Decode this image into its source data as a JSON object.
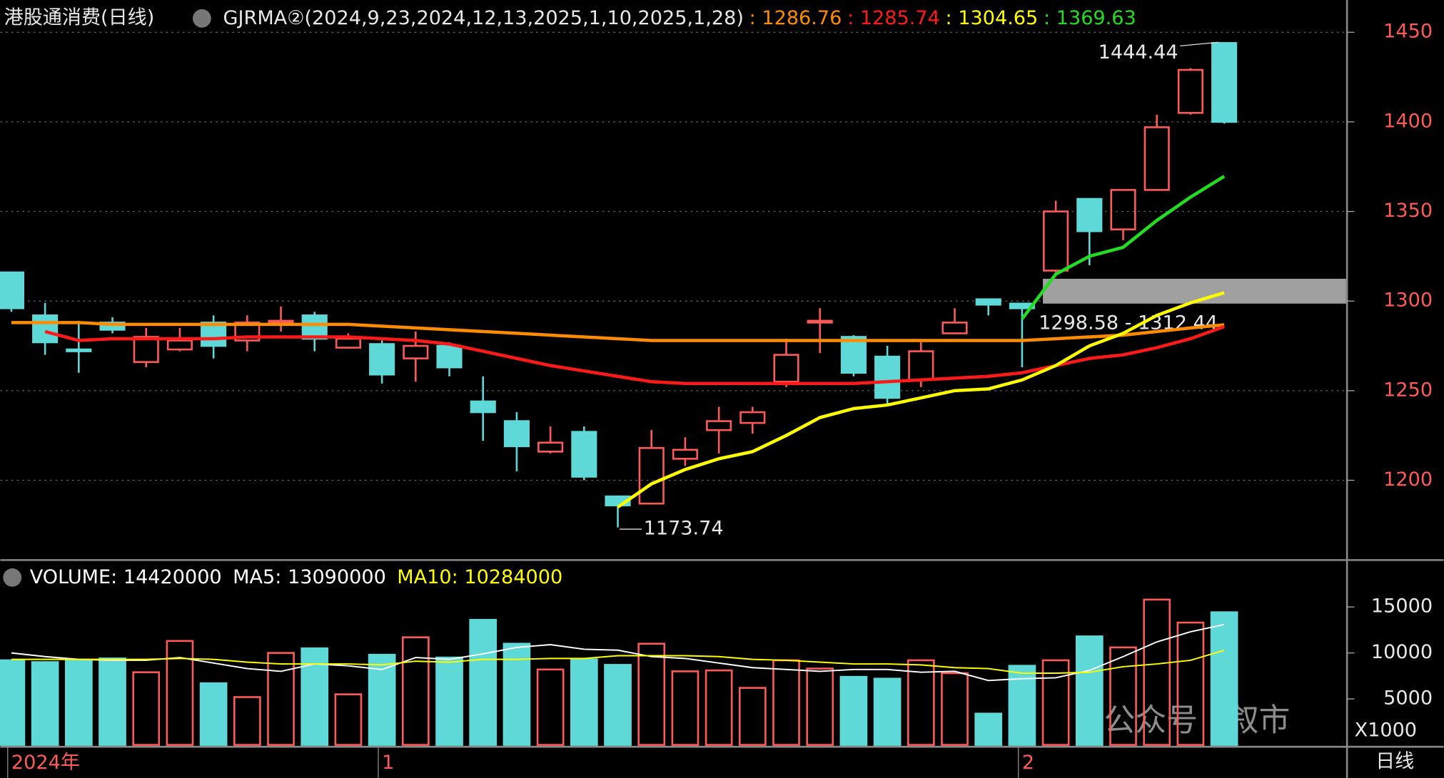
{
  "chart_data": [
    {
      "type": "candlestick",
      "title": "港股通消费(日线)",
      "indicator": "GJRMA②(2024,9,23,2024,12,13,2025,1,10,2025,1,28)",
      "up_color": "#ff5a5a",
      "down_color": "#5fd8d8",
      "open": [
        1316,
        1292,
        1273,
        1288,
        1266,
        1273,
        1288,
        1278,
        1288,
        1292,
        1274,
        1276,
        1268,
        1275,
        1244,
        1233,
        1216,
        1227,
        1191,
        1187,
        1212,
        1228,
        1232,
        1255,
        1288,
        1280,
        1269,
        1256,
        1282,
        1301,
        1298.58,
        1317,
        1357,
        1340,
        1362,
        1405,
        1444
      ],
      "high": [
        1316,
        1299,
        1289,
        1291,
        1285,
        1285,
        1292,
        1292,
        1297,
        1294,
        1282,
        1278,
        1283,
        1277,
        1258,
        1238,
        1230,
        1230,
        1191,
        1228,
        1224,
        1241,
        1241,
        1279,
        1296,
        1281,
        1275,
        1277,
        1296,
        1301,
        1298.6,
        1356,
        1357,
        1362,
        1404,
        1430,
        1444.44
      ],
      "low": [
        1294,
        1270,
        1260,
        1282,
        1263,
        1272,
        1268,
        1272,
        1283,
        1272,
        1274,
        1254,
        1255,
        1258,
        1222,
        1205,
        1215,
        1200,
        1173.74,
        1187,
        1208,
        1215,
        1226,
        1252,
        1271,
        1258,
        1242,
        1252,
        1282,
        1292,
        1263,
        1316,
        1320,
        1334,
        1362,
        1404,
        1399
      ],
      "close": [
        1296,
        1277,
        1272,
        1284,
        1280,
        1278,
        1275,
        1288,
        1289,
        1279,
        1279,
        1259,
        1275,
        1263,
        1238,
        1219,
        1221,
        1202,
        1186,
        1218,
        1217,
        1233,
        1238,
        1270,
        1289,
        1260,
        1246,
        1272,
        1288,
        1298,
        1296,
        1350,
        1339,
        1362,
        1397,
        1429,
        1400
      ],
      "ma_lines": [
        {
          "color": "#ff8c00",
          "readout": ": 1286.76",
          "values": [
            1288,
            1288,
            1288,
            1287,
            1287,
            1287,
            1287,
            1287,
            1287,
            1287,
            1287,
            1286,
            1285,
            1284,
            1283,
            1282,
            1281,
            1280,
            1279,
            1278,
            1278,
            1278,
            1278,
            1278,
            1278,
            1278,
            1278,
            1278,
            1278,
            1278,
            1278,
            1279,
            1280,
            1281,
            1283,
            1285,
            1286.76
          ]
        },
        {
          "color": "#ff1a1a",
          "readout": ": 1285.74",
          "values": [
            null,
            1283,
            1278,
            1279,
            1279,
            1279,
            1279,
            1280,
            1280,
            1280,
            1280,
            1279,
            1278,
            1276,
            1272,
            1268,
            1264,
            1261,
            1258,
            1255,
            1254,
            1254,
            1254,
            1254,
            1254,
            1254,
            1255,
            1256,
            1257,
            1258,
            1260,
            1264,
            1268,
            1270,
            1274,
            1279,
            1285.74
          ]
        },
        {
          "color": "#ffff00",
          "readout": ": 1304.65",
          "values": [
            null,
            null,
            null,
            null,
            null,
            null,
            null,
            null,
            null,
            null,
            null,
            null,
            null,
            null,
            null,
            null,
            null,
            null,
            1185,
            1198,
            1206,
            1212,
            1216,
            1225,
            1235,
            1240,
            1242,
            1246,
            1250,
            1251,
            1256,
            1264,
            1275,
            1282,
            1292,
            1299,
            1304.65
          ]
        },
        {
          "color": "#22dd22",
          "readout": ": 1369.63",
          "values": [
            null,
            null,
            null,
            null,
            null,
            null,
            null,
            null,
            null,
            null,
            null,
            null,
            null,
            null,
            null,
            null,
            null,
            null,
            null,
            null,
            null,
            null,
            null,
            null,
            null,
            null,
            null,
            null,
            null,
            null,
            1290,
            1315,
            1325,
            1330,
            1345,
            1358,
            1369.63
          ]
        }
      ],
      "band": [
        1298.58,
        1312.44
      ],
      "band_label": "1298.58 - 1312.44",
      "annotations": [
        "1444.44",
        "1173.74"
      ],
      "ylim": [
        1156,
        1468
      ],
      "yticks": [
        1200,
        1250,
        1300,
        1350,
        1400,
        1450
      ],
      "grid": true
    },
    {
      "type": "bar",
      "header": [
        "VOLUME: 14420000",
        "MA5: 13090000",
        "MA10: 10284000"
      ],
      "header_colors": [
        "#ffffff",
        "#ffffff",
        "#ffff00"
      ],
      "values": [
        9200,
        9000,
        9200,
        9400,
        7900,
        11300,
        6700,
        5200,
        10000,
        10500,
        5500,
        9800,
        11700,
        9500,
        13600,
        11000,
        8200,
        9300,
        8700,
        11000,
        8000,
        8100,
        6200,
        9200,
        8300,
        7400,
        7200,
        9200,
        7800,
        3400,
        8600,
        9200,
        11800,
        10600,
        15800,
        13300,
        14420
      ],
      "series": [
        {
          "color": "#ffffff",
          "values": [
            10000,
            9600,
            9300,
            9200,
            9200,
            9500,
            8900,
            8300,
            8000,
            8800,
            8600,
            8200,
            9500,
            9300,
            9900,
            10600,
            10900,
            10400,
            10300,
            9600,
            9400,
            8900,
            8400,
            8200,
            8000,
            8200,
            8200,
            7900,
            8000,
            7000,
            7200,
            7300,
            8100,
            9600,
            11200,
            12300,
            13090
          ]
        },
        {
          "color": "#ffff00",
          "values": [
            9300,
            9300,
            9300,
            9300,
            9300,
            9400,
            9300,
            9000,
            8800,
            8800,
            8800,
            8700,
            9100,
            9000,
            9300,
            9300,
            9400,
            9400,
            9700,
            9700,
            9700,
            9600,
            9300,
            9200,
            9000,
            8800,
            8800,
            8700,
            8400,
            8300,
            7800,
            7800,
            7900,
            8500,
            8800,
            9200,
            10284
          ]
        }
      ],
      "categories": [
        "2024年",
        null,
        null,
        null,
        null,
        null,
        null,
        null,
        null,
        null,
        null,
        "1",
        null,
        null,
        null,
        null,
        null,
        null,
        null,
        null,
        null,
        null,
        null,
        null,
        null,
        null,
        null,
        null,
        null,
        null,
        "2",
        null,
        null,
        null,
        null,
        null,
        null
      ],
      "ylim": [
        0,
        19800
      ],
      "yticks": [
        5000,
        10000,
        15000
      ],
      "unit_label": "X1000",
      "period": "日线",
      "watermark": "公众号 · 叙市"
    }
  ]
}
